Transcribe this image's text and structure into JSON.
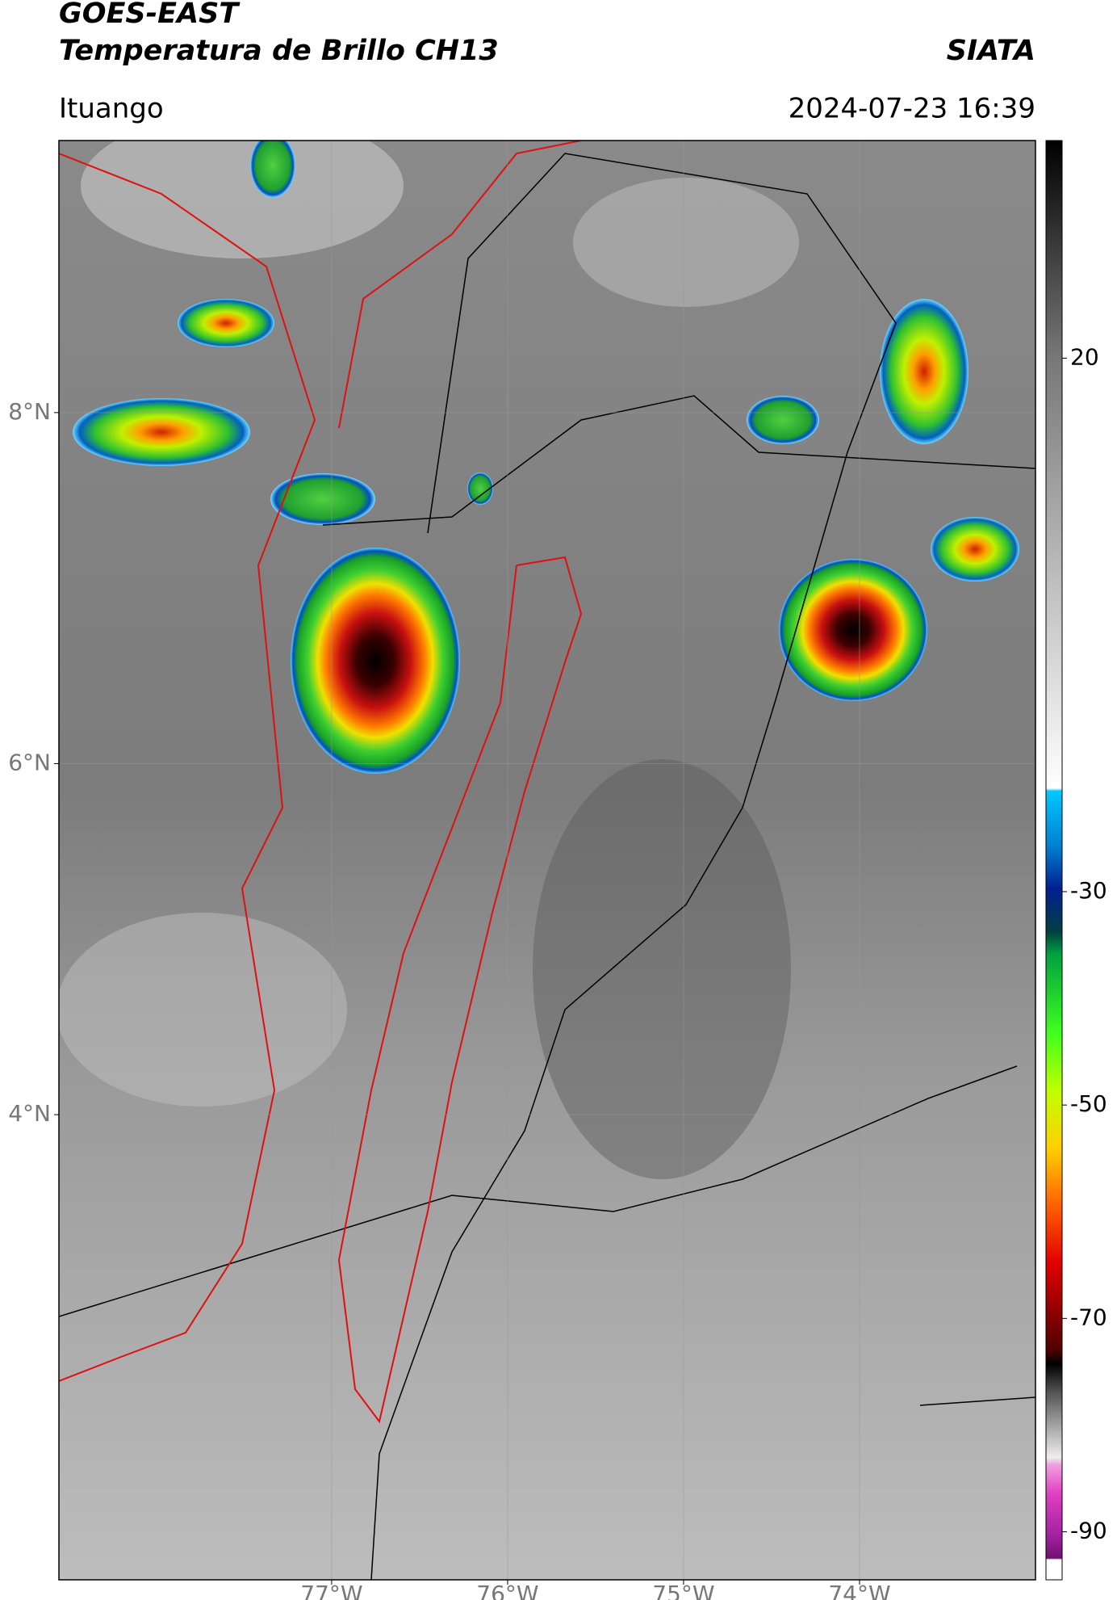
{
  "header": {
    "title": "GOES-EAST",
    "subtitle": "Temperatura de Brillo CH13",
    "source": "SIATA",
    "region": "Ituango",
    "datetime": "2024-07-23 16:39"
  },
  "map": {
    "xlim": [
      -78.55,
      -73
    ],
    "ylim": [
      1.35,
      9.55
    ],
    "xticks": [
      {
        "value": -77,
        "label": "77°W"
      },
      {
        "value": -76,
        "label": "76°W"
      },
      {
        "value": -75,
        "label": "75°W"
      },
      {
        "value": -74,
        "label": "74°W"
      }
    ],
    "yticks": [
      {
        "value": 8,
        "label": "8°N"
      },
      {
        "value": 6,
        "label": "6°N"
      },
      {
        "value": 4,
        "label": "4°N"
      }
    ]
  },
  "colorbar": {
    "lim": [
      -94.5,
      40.4
    ],
    "ticks": [
      20,
      -30,
      -50,
      -70,
      -90
    ]
  }
}
